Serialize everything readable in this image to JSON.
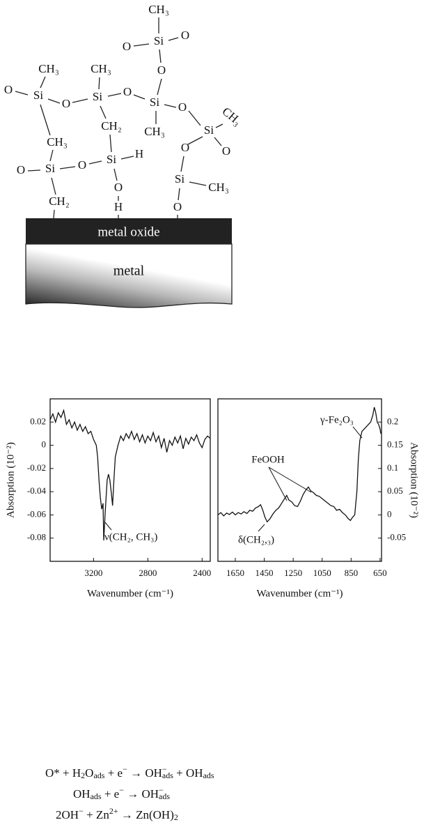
{
  "diagram": {
    "labels": [
      "CH₃",
      "O",
      "Si",
      "O",
      "O",
      "CH₃",
      "CH₃",
      "O",
      "Si",
      "O",
      "Si",
      "O",
      "Si",
      "O",
      "CH₃",
      "Si",
      "O",
      "CH₃",
      "CH₃",
      "CH₂",
      "O",
      "Si",
      "O",
      "Si",
      "H",
      "O",
      "Si",
      "CH₃",
      "O",
      "H",
      "CH₂",
      "O",
      "metal oxide",
      "metal"
    ]
  },
  "chart_data": [
    {
      "type": "line",
      "yaxis_side": "left",
      "color": "#111",
      "xlabel": "Wavenumber (cm⁻¹)",
      "ylabel": "Absorption (10⁻²)",
      "annotations": [
        "ν(CH₂, CH₃)"
      ],
      "xlim": [
        3520,
        2340
      ],
      "xticks": [
        3200,
        2800,
        2400
      ],
      "ylim": [
        -0.1,
        0.04
      ],
      "yticks": [
        0.02,
        0,
        -0.02,
        -0.04,
        -0.06,
        -0.08
      ],
      "x": [
        3520,
        3500,
        3480,
        3460,
        3440,
        3420,
        3400,
        3380,
        3360,
        3340,
        3320,
        3300,
        3280,
        3260,
        3240,
        3220,
        3200,
        3180,
        3170,
        3160,
        3150,
        3140,
        3130,
        3125,
        3115,
        3100,
        3090,
        3080,
        3070,
        3060,
        3050,
        3040,
        3020,
        3000,
        2980,
        2960,
        2940,
        2920,
        2900,
        2880,
        2860,
        2840,
        2820,
        2800,
        2780,
        2760,
        2740,
        2720,
        2700,
        2680,
        2660,
        2640,
        2620,
        2600,
        2580,
        2560,
        2540,
        2520,
        2500,
        2480,
        2460,
        2440,
        2420,
        2400,
        2380,
        2360,
        2340
      ],
      "values": [
        0.022,
        0.027,
        0.02,
        0.028,
        0.024,
        0.03,
        0.018,
        0.022,
        0.015,
        0.02,
        0.013,
        0.018,
        0.012,
        0.016,
        0.01,
        0.012,
        0.005,
        0.0,
        -0.01,
        -0.03,
        -0.045,
        -0.055,
        -0.05,
        -0.082,
        -0.06,
        -0.03,
        -0.025,
        -0.03,
        -0.04,
        -0.052,
        -0.03,
        -0.01,
        0.0,
        0.008,
        0.004,
        0.01,
        0.006,
        0.012,
        0.005,
        0.01,
        0.003,
        0.009,
        0.002,
        0.008,
        0.004,
        0.011,
        0.003,
        0.008,
        -0.002,
        0.006,
        -0.006,
        0.004,
        0.0,
        0.007,
        0.002,
        0.008,
        -0.003,
        0.006,
        0.001,
        0.007,
        0.004,
        0.009,
        0.002,
        -0.002,
        0.005,
        0.008,
        0.006
      ]
    },
    {
      "type": "line",
      "yaxis_side": "right",
      "color": "#111",
      "xlabel": "Wavenumber (cm⁻¹)",
      "ylabel": "Absorption (10⁻²)",
      "annotations": [
        "FeOOH",
        "γ-Fe₂O₃",
        "δ(CH₂,₃)"
      ],
      "xlim": [
        1770,
        640
      ],
      "xticks": [
        1650,
        1450,
        1250,
        1050,
        850,
        650
      ],
      "ylim": [
        -0.1,
        0.25
      ],
      "yticks": [
        0.2,
        0.15,
        0.1,
        0.05,
        0,
        -0.05
      ],
      "x": [
        1770,
        1750,
        1730,
        1710,
        1690,
        1670,
        1650,
        1630,
        1610,
        1590,
        1570,
        1550,
        1530,
        1510,
        1490,
        1475,
        1460,
        1445,
        1430,
        1410,
        1390,
        1370,
        1350,
        1330,
        1310,
        1295,
        1280,
        1260,
        1240,
        1220,
        1200,
        1180,
        1160,
        1145,
        1130,
        1110,
        1090,
        1070,
        1050,
        1030,
        1010,
        990,
        970,
        950,
        930,
        910,
        890,
        870,
        855,
        840,
        825,
        810,
        800,
        790,
        775,
        760,
        745,
        730,
        715,
        700,
        690,
        680,
        670,
        660,
        650,
        645
      ],
      "values": [
        0.0,
        0.005,
        -0.002,
        0.004,
        0.001,
        0.006,
        0.0,
        0.005,
        0.002,
        0.007,
        0.003,
        0.01,
        0.008,
        0.015,
        0.018,
        0.022,
        0.01,
        -0.005,
        -0.015,
        -0.008,
        0.002,
        0.01,
        0.015,
        0.025,
        0.035,
        0.042,
        0.032,
        0.028,
        0.02,
        0.018,
        0.03,
        0.045,
        0.055,
        0.06,
        0.052,
        0.048,
        0.042,
        0.04,
        0.035,
        0.03,
        0.025,
        0.02,
        0.018,
        0.01,
        0.012,
        0.005,
        0.0,
        -0.008,
        -0.012,
        -0.005,
        0.0,
        0.05,
        0.12,
        0.16,
        0.18,
        0.185,
        0.19,
        0.195,
        0.2,
        0.215,
        0.232,
        0.22,
        0.2,
        0.195,
        0.185,
        0.175
      ]
    }
  ],
  "equations": [
    [
      "O* + H",
      "2",
      "O",
      "ads",
      " + e",
      "−",
      " → OH",
      "−",
      "ads",
      " + OH",
      "ads"
    ],
    [
      "OH",
      "ads",
      " + e",
      "−",
      " → OH",
      "−",
      "ads"
    ],
    [
      "2OH",
      "−",
      " + Zn",
      "2+",
      " → Zn(OH)",
      "2"
    ]
  ]
}
